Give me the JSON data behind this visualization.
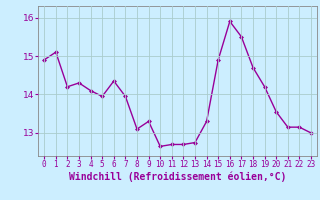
{
  "x": [
    0,
    1,
    2,
    3,
    4,
    5,
    6,
    7,
    8,
    9,
    10,
    11,
    12,
    13,
    14,
    15,
    16,
    17,
    18,
    19,
    20,
    21,
    22,
    23
  ],
  "y": [
    14.9,
    15.1,
    14.2,
    14.3,
    14.1,
    13.95,
    14.35,
    13.95,
    13.1,
    13.3,
    12.65,
    12.7,
    12.7,
    12.75,
    13.3,
    14.9,
    15.9,
    15.5,
    14.7,
    14.2,
    13.55,
    13.15,
    13.15,
    13.0
  ],
  "line_color": "#990099",
  "marker": "D",
  "marker_size": 2,
  "background_color": "#cceeff",
  "grid_color": "#aacccc",
  "xlabel": "Windchill (Refroidissement éolien,°C)",
  "xlabel_fontsize": 7,
  "ylim": [
    12.4,
    16.3
  ],
  "yticks": [
    13,
    14,
    15,
    16
  ],
  "xtick_fontsize": 5.5,
  "ytick_fontsize": 6.5,
  "line_width": 1.0
}
